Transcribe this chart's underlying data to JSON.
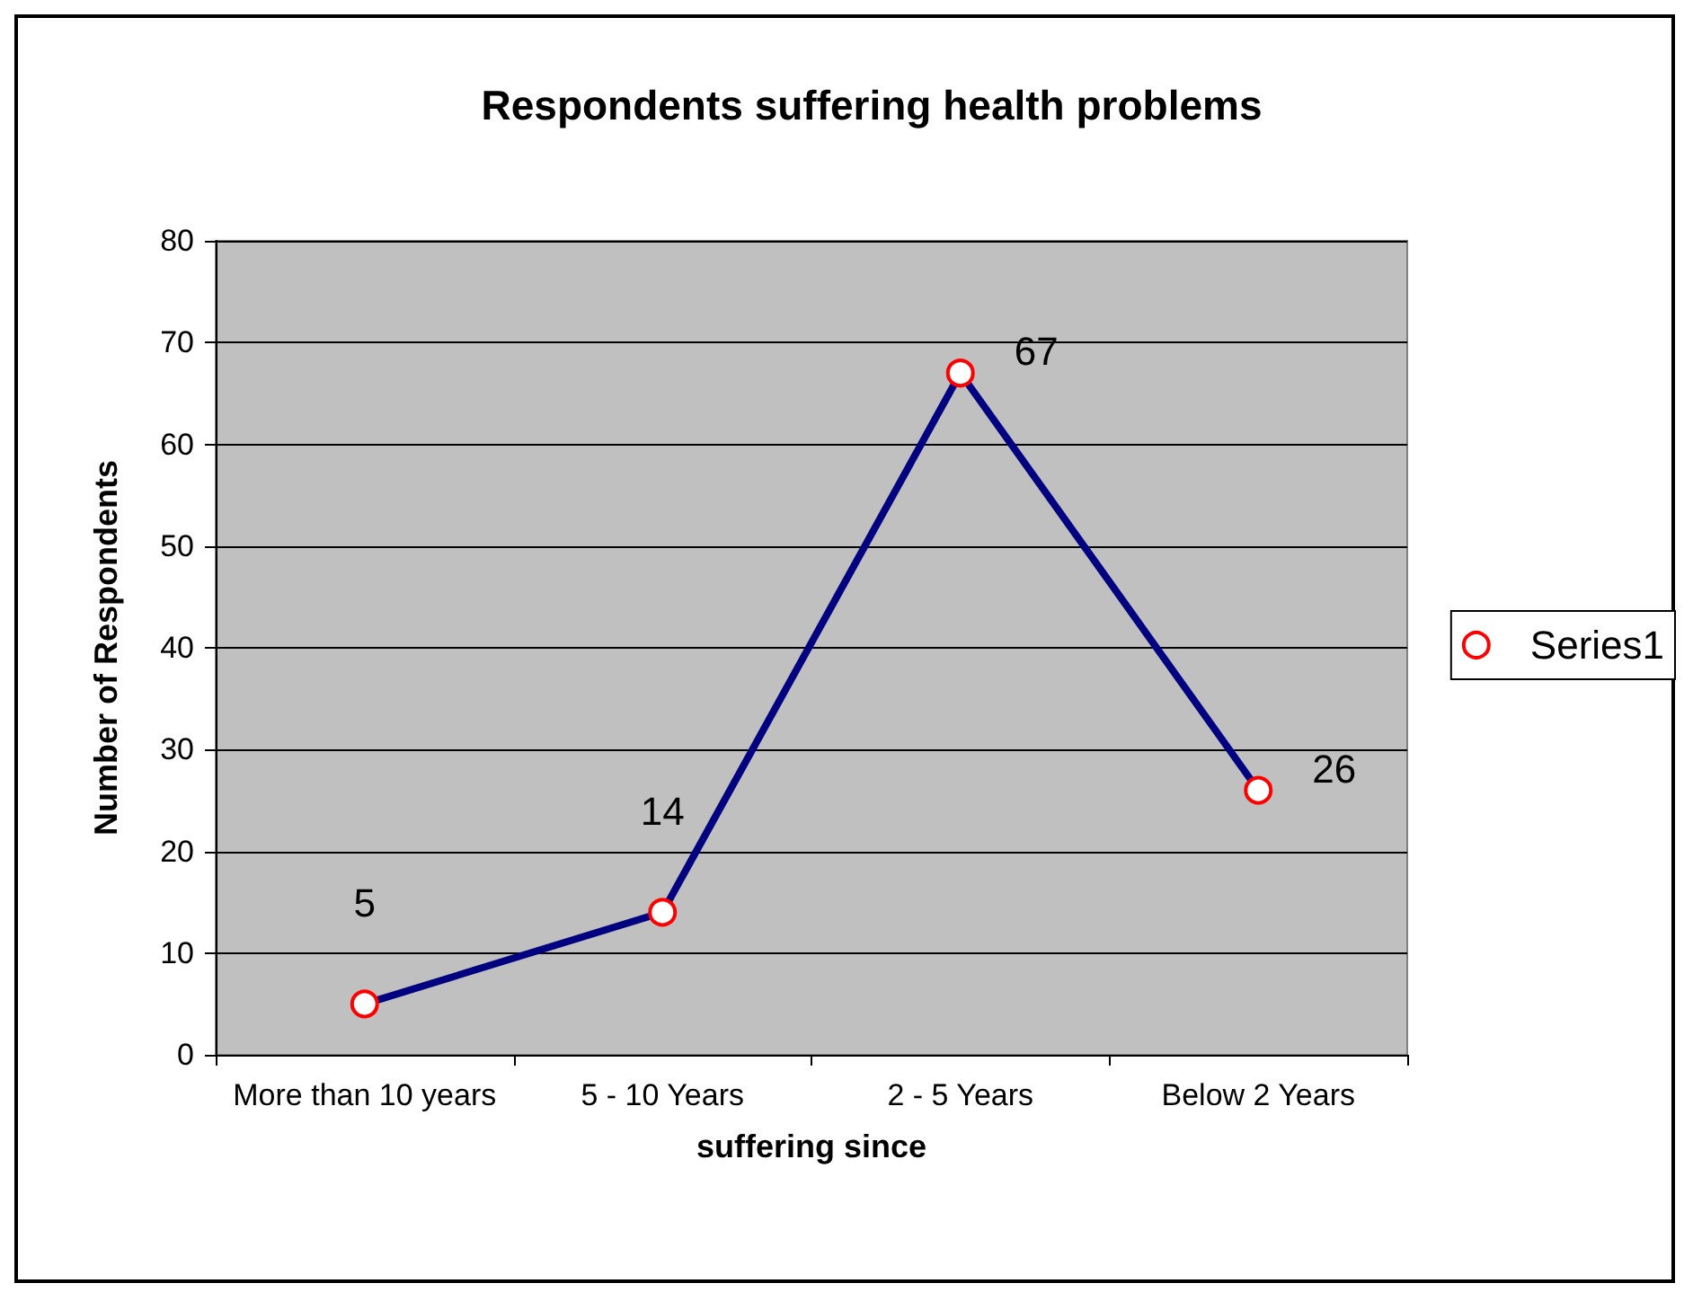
{
  "chart_data": {
    "type": "line",
    "title": "Respondents suffering health problems",
    "xlabel": "suffering since",
    "ylabel": "Number of Respondents",
    "categories": [
      "More than 10 years",
      "5 - 10 Years",
      "2 - 5 Years",
      "Below 2 Years"
    ],
    "series": [
      {
        "name": "Series1",
        "color": "#000080",
        "values": [
          5,
          14,
          67,
          26
        ]
      }
    ],
    "ylim": [
      0,
      80
    ],
    "yticks": [
      0,
      10,
      20,
      30,
      40,
      50,
      60,
      70,
      80
    ],
    "grid": "y",
    "legend": "right",
    "marker": "circle",
    "line_style": "solid",
    "data_labels": true
  }
}
